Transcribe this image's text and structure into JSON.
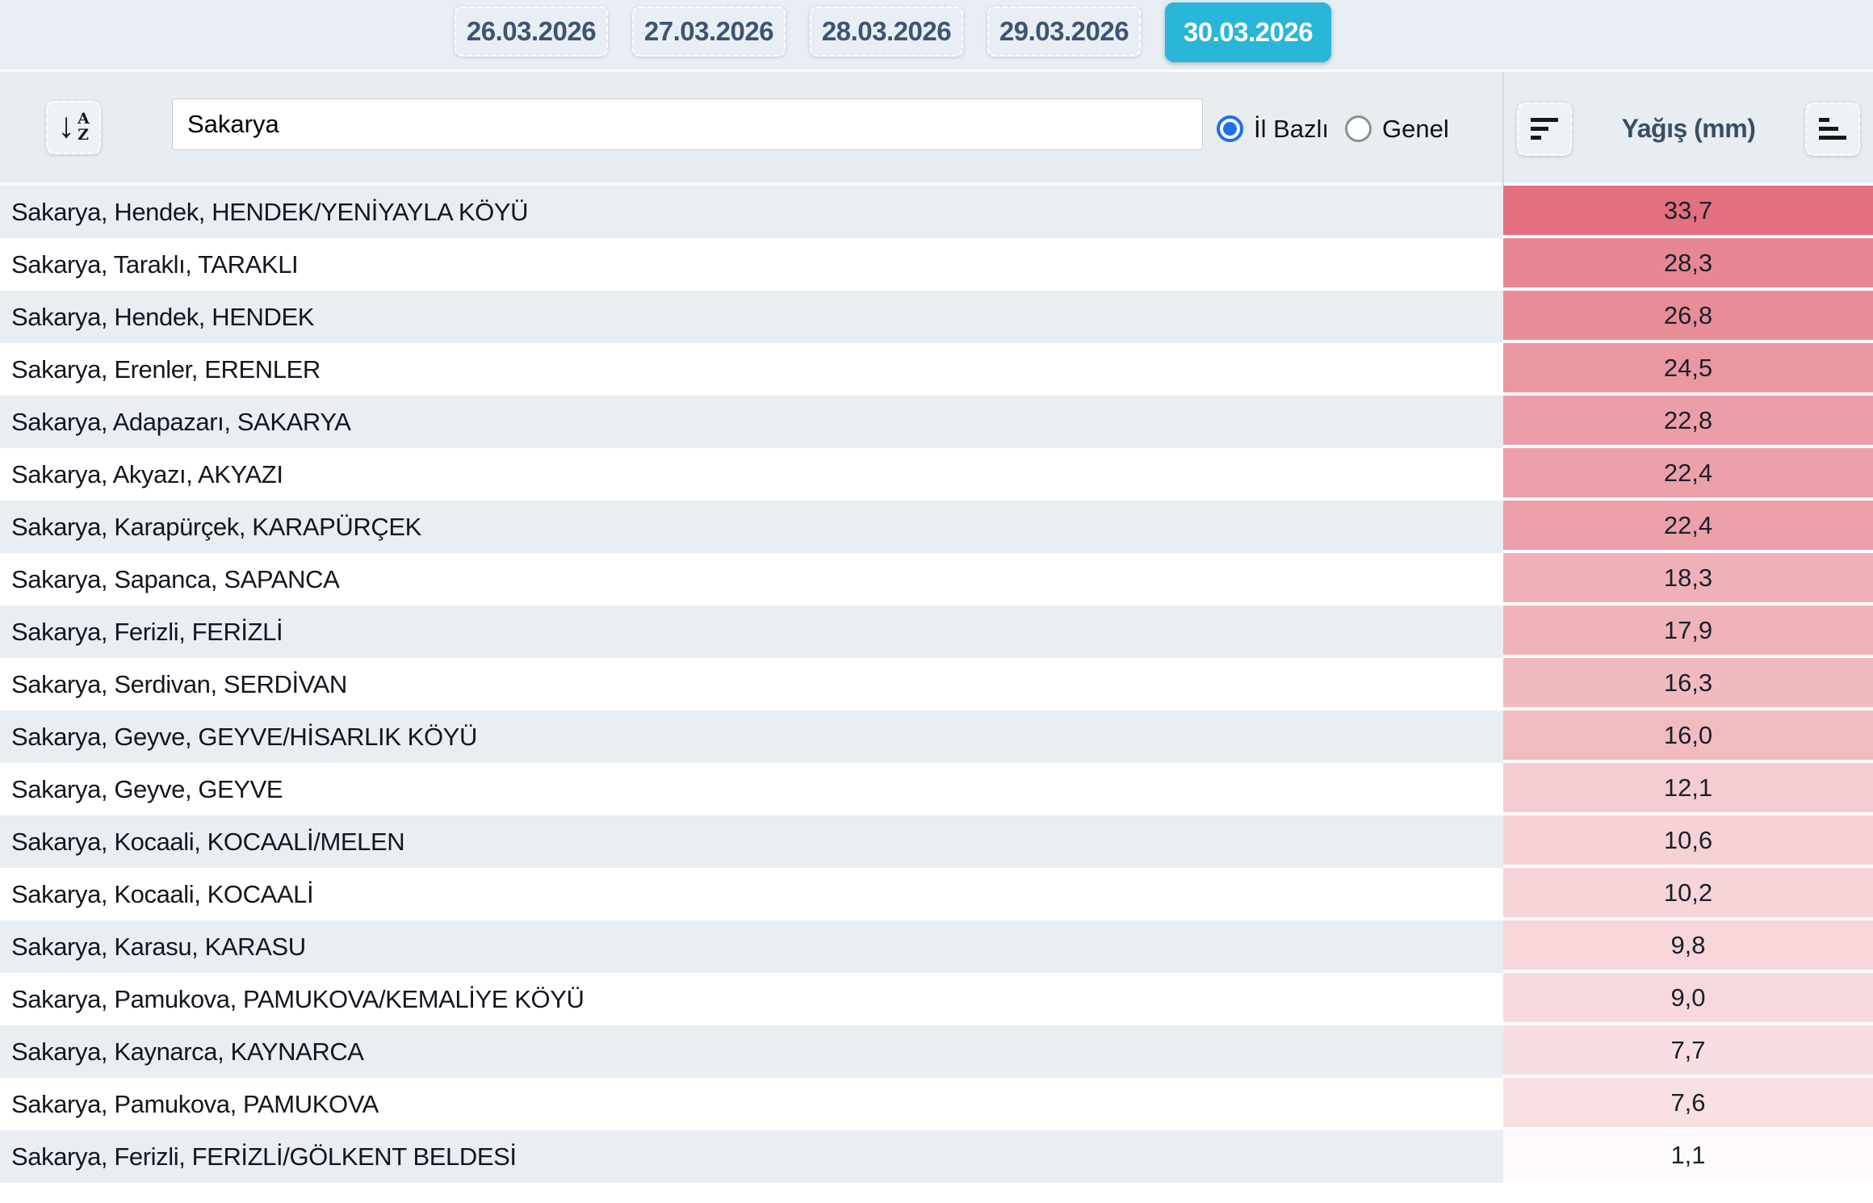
{
  "date_tabs": [
    {
      "label": "26.03.2026",
      "active": false
    },
    {
      "label": "27.03.2026",
      "active": false
    },
    {
      "label": "28.03.2026",
      "active": false
    },
    {
      "label": "29.03.2026",
      "active": false
    },
    {
      "label": "30.03.2026",
      "active": true
    }
  ],
  "toolbar": {
    "sort_az_icon": "sort-alphabetical-descending-arrow-A-Z",
    "az_top": "A",
    "az_bottom": "Z",
    "arrow": "↓",
    "search_value": "Sakarya",
    "search_placeholder": "",
    "radios": [
      {
        "label": "İl Bazlı",
        "selected": true
      },
      {
        "label": "Genel",
        "selected": false
      }
    ],
    "column_header": "Yağış (mm)",
    "sort_desc_icon": "sort-amount-descending",
    "sort_asc_icon": "sort-amount-ascending"
  },
  "colors": {
    "accent_teal": "#29b6d9",
    "radio_blue": "#1d6ff2",
    "tab_text": "#3e5472",
    "header_text": "#3b4e66",
    "row_alt_bg": "#e9eef3",
    "value_base_red": "#e2707e"
  },
  "color_scale": {
    "base": "#e2707e",
    "max": 33.7
  },
  "table": {
    "rows": [
      {
        "station": "Sakarya, Hendek, HENDEK/YENİYAYLA KÖYÜ",
        "value": "33,7"
      },
      {
        "station": "Sakarya, Taraklı, TARAKLI",
        "value": "28,3"
      },
      {
        "station": "Sakarya, Hendek, HENDEK",
        "value": "26,8"
      },
      {
        "station": "Sakarya, Erenler, ERENLER",
        "value": "24,5"
      },
      {
        "station": "Sakarya, Adapazarı, SAKARYA",
        "value": "22,8"
      },
      {
        "station": "Sakarya, Akyazı, AKYAZI",
        "value": "22,4"
      },
      {
        "station": "Sakarya, Karapürçek, KARAPÜRÇEK",
        "value": "22,4"
      },
      {
        "station": "Sakarya, Sapanca, SAPANCA",
        "value": "18,3"
      },
      {
        "station": "Sakarya, Ferizli, FERİZLİ",
        "value": "17,9"
      },
      {
        "station": "Sakarya, Serdivan, SERDİVAN",
        "value": "16,3"
      },
      {
        "station": "Sakarya, Geyve, GEYVE/HİSARLIK KÖYÜ",
        "value": "16,0"
      },
      {
        "station": "Sakarya, Geyve, GEYVE",
        "value": "12,1"
      },
      {
        "station": "Sakarya, Kocaali, KOCAALİ/MELEN",
        "value": "10,6"
      },
      {
        "station": "Sakarya, Kocaali, KOCAALİ",
        "value": "10,2"
      },
      {
        "station": "Sakarya, Karasu, KARASU",
        "value": "9,8"
      },
      {
        "station": "Sakarya, Pamukova, PAMUKOVA/KEMALİYE KÖYÜ",
        "value": "9,0"
      },
      {
        "station": "Sakarya, Kaynarca, KAYNARCA",
        "value": "7,7"
      },
      {
        "station": "Sakarya, Pamukova, PAMUKOVA",
        "value": "7,6"
      },
      {
        "station": "Sakarya, Ferizli, FERİZLİ/GÖLKENT BELDESİ",
        "value": "1,1"
      }
    ]
  }
}
